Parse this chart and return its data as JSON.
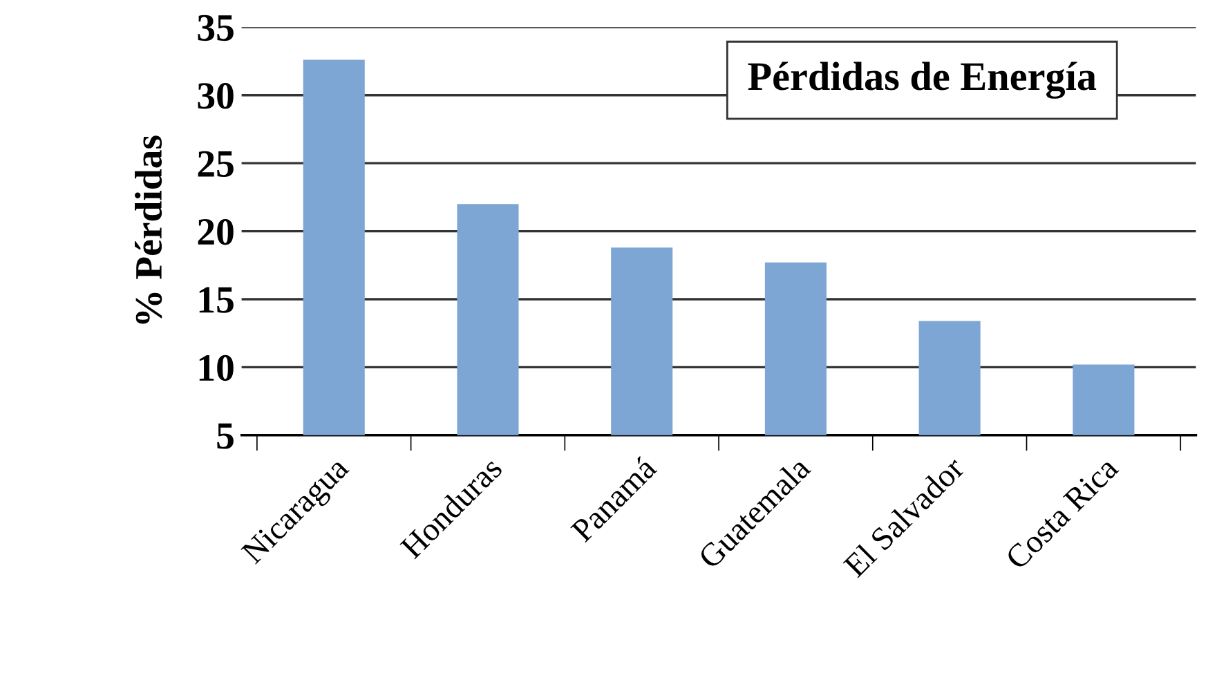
{
  "chart_data": {
    "type": "bar",
    "title": "Pérdidas de Energía",
    "ylabel": "% Pérdidas",
    "categories": [
      "Nicaragua",
      "Honduras",
      "Panamá",
      "Guatemala",
      "El Salvador",
      "Costa Rica"
    ],
    "values": [
      32.6,
      22.0,
      18.8,
      17.7,
      13.4,
      10.2
    ],
    "color": "#7ea6d4",
    "ylim": [
      5,
      35
    ],
    "yticks": [
      5,
      10,
      15,
      20,
      25,
      30,
      35
    ],
    "grid": "y"
  }
}
